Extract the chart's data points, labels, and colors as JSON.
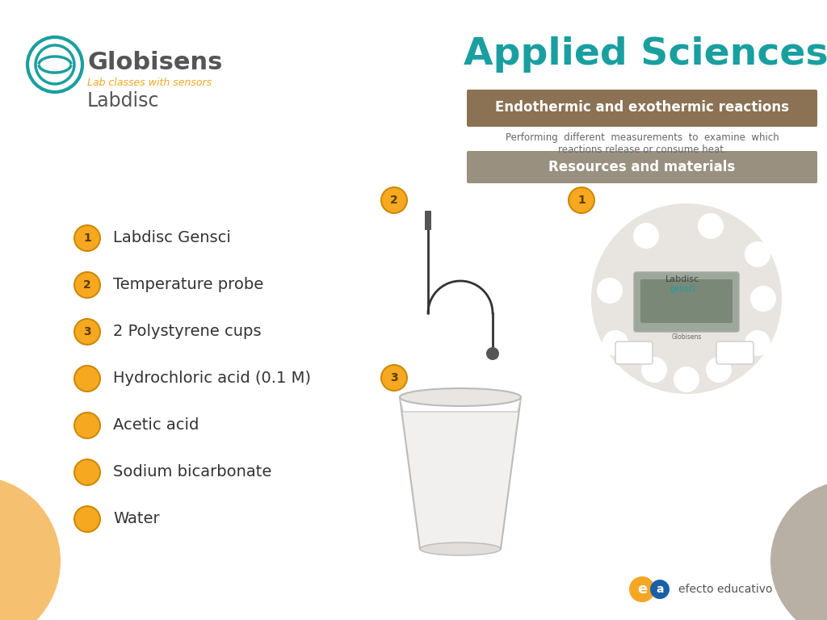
{
  "bg_color": "#ffffff",
  "title_applied": "Applied Sciences",
  "title_color": "#1a9fa0",
  "bar1_text": "Endothermic and exothermic reactions",
  "bar1_color": "#8B7254",
  "bar2_text": "Resources and materials",
  "bar2_color": "#999080",
  "subtitle": "Performing  different  measurements  to  examine  which\nreactions release or consume heat.",
  "subtitle_color": "#666666",
  "globisens_color": "#555555",
  "labclasses_color": "#F5A623",
  "logo_teal": "#1a9fa0",
  "bullet_color_numbered": "#F5A820",
  "bullet_border_numbered": "#CC8800",
  "bullet_color_plain": "#F5A820",
  "items": [
    {
      "num": "1",
      "text": "Labdisc Gensci"
    },
    {
      "num": "2",
      "text": "Temperature probe"
    },
    {
      "num": "3",
      "text": "2 Polystyrene cups"
    },
    {
      "num": "",
      "text": "Hydrochloric acid (0.1 M)"
    },
    {
      "num": "",
      "text": "Acetic acid"
    },
    {
      "num": "",
      "text": "Sodium bicarbonate"
    },
    {
      "num": "",
      "text": "Water"
    }
  ],
  "efecto_color": "#555555",
  "efecto_orange": "#F5A623",
  "efecto_blue": "#1A5EA8"
}
